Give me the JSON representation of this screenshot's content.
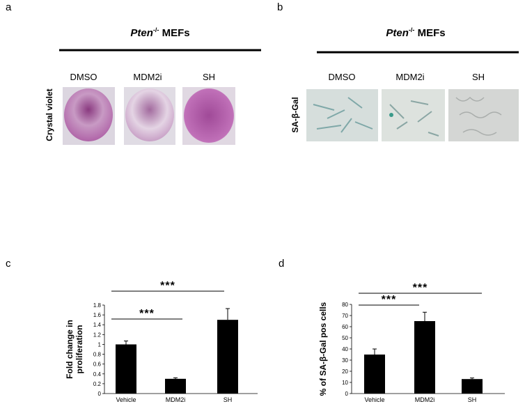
{
  "panels": [
    {
      "label": "a",
      "title_italic": "Pten",
      "title_sup": "-/-",
      "title_rest": " MEFs",
      "columns": [
        "DMSO",
        "MDM2i",
        "SH"
      ],
      "row_label": "Crystal violet"
    },
    {
      "label": "b",
      "title_italic": "Pten",
      "title_sup": "-/-",
      "title_rest": " MEFs",
      "columns": [
        "DMSO",
        "MDM2i",
        "SH"
      ],
      "row_label": "SA-β-Gal"
    }
  ],
  "chart_data": [
    {
      "type": "bar",
      "panel_label": "c",
      "ylabel": [
        "Fold change in",
        "proliferation"
      ],
      "categories": [
        "Vehicle",
        "MDM2i",
        "SH"
      ],
      "values": [
        1.0,
        0.3,
        1.5
      ],
      "errors": [
        0.07,
        0.02,
        0.23
      ],
      "color": "#000000",
      "ylim": [
        0,
        1.8
      ],
      "yticks": [
        0,
        0.2,
        0.4,
        0.6,
        0.8,
        1,
        1.2,
        1.4,
        1.6,
        1.8
      ],
      "annotations": [
        "***",
        "***"
      ]
    },
    {
      "type": "bar",
      "panel_label": "d",
      "ylabel": [
        "% of SA-β-Gal pos cells"
      ],
      "categories": [
        "Vehicle",
        "MDM2i",
        "SH"
      ],
      "values": [
        35,
        65,
        13
      ],
      "errors": [
        5,
        8,
        1
      ],
      "color": "#000000",
      "ylim": [
        0,
        80
      ],
      "yticks": [
        0,
        10,
        20,
        30,
        40,
        50,
        60,
        70,
        80
      ],
      "annotations": [
        "***",
        "***"
      ]
    }
  ]
}
